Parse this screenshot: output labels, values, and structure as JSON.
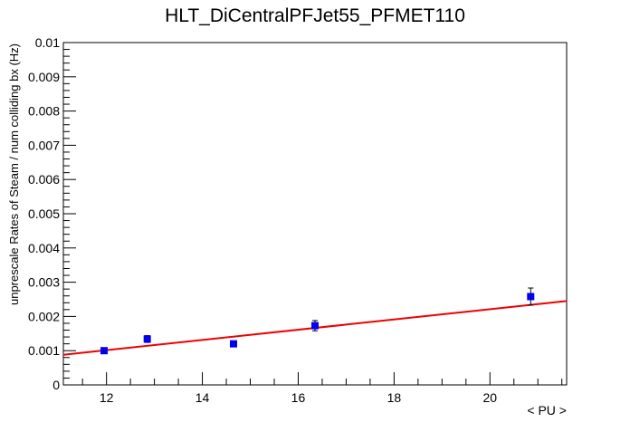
{
  "chart_data": {
    "type": "scatter",
    "title": "HLT_DiCentralPFJet55_PFMET110",
    "xlabel": "< PU >",
    "ylabel": "unprescale Rates of Steam / num colliding bx (Hz)",
    "xlim": [
      11.1,
      21.6
    ],
    "ylim": [
      0,
      0.01
    ],
    "x_ticks": [
      "12",
      "14",
      "16",
      "18",
      "20"
    ],
    "y_ticks": [
      "0",
      "0.001",
      "0.002",
      "0.003",
      "0.004",
      "0.005",
      "0.006",
      "0.007",
      "0.008",
      "0.009",
      "0.01"
    ],
    "grid": false,
    "series": [
      {
        "kind": "points",
        "color": "#0000ee",
        "marker": "square",
        "points": [
          {
            "x": 11.95,
            "y": 0.001,
            "err": 5e-05
          },
          {
            "x": 12.85,
            "y": 0.00134,
            "err": 0.0001
          },
          {
            "x": 14.65,
            "y": 0.0012,
            "err": 5e-05
          },
          {
            "x": 16.35,
            "y": 0.00173,
            "err": 0.00015
          },
          {
            "x": 20.85,
            "y": 0.00258,
            "err": 0.00025
          }
        ]
      },
      {
        "kind": "fit-line",
        "color": "#ee0000",
        "x": [
          11.1,
          21.6
        ],
        "y": [
          0.00088,
          0.00245
        ]
      }
    ]
  }
}
